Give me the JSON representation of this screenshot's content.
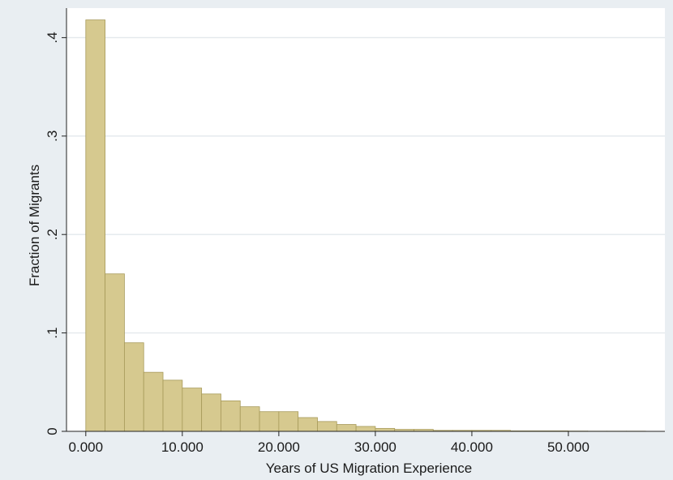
{
  "colors": {
    "background": "#e9eef2",
    "plot_area": "#ffffff",
    "bar_fill": "#d6c98f",
    "bar_stroke": "#a79a5a",
    "gridline": "#e3e8ec",
    "axis": "#222222"
  },
  "chart_data": {
    "type": "bar",
    "style": "histogram",
    "title": "",
    "xlabel": "Years of US Migration Experience",
    "ylabel": "Fraction of Migrants",
    "xlim": [
      -2,
      60
    ],
    "ylim": [
      0,
      0.43
    ],
    "grid": true,
    "legend": "none",
    "x_ticks": [
      {
        "value": 0,
        "label": "0.000"
      },
      {
        "value": 10,
        "label": "10.000"
      },
      {
        "value": 20,
        "label": "20.000"
      },
      {
        "value": 30,
        "label": "30.000"
      },
      {
        "value": 40,
        "label": "40.000"
      },
      {
        "value": 50,
        "label": "50.000"
      }
    ],
    "y_ticks": [
      {
        "value": 0,
        "label": "0"
      },
      {
        "value": 0.1,
        "label": ".1"
      },
      {
        "value": 0.2,
        "label": ".2"
      },
      {
        "value": 0.3,
        "label": ".3"
      },
      {
        "value": 0.4,
        "label": ".4"
      }
    ],
    "bin_width": 2,
    "bins": [
      {
        "start": 0,
        "value": 0.418
      },
      {
        "start": 2,
        "value": 0.16
      },
      {
        "start": 4,
        "value": 0.09
      },
      {
        "start": 6,
        "value": 0.06
      },
      {
        "start": 8,
        "value": 0.052
      },
      {
        "start": 10,
        "value": 0.044
      },
      {
        "start": 12,
        "value": 0.038
      },
      {
        "start": 14,
        "value": 0.031
      },
      {
        "start": 16,
        "value": 0.025
      },
      {
        "start": 18,
        "value": 0.02
      },
      {
        "start": 20,
        "value": 0.02
      },
      {
        "start": 22,
        "value": 0.014
      },
      {
        "start": 24,
        "value": 0.01
      },
      {
        "start": 26,
        "value": 0.007
      },
      {
        "start": 28,
        "value": 0.005
      },
      {
        "start": 30,
        "value": 0.003
      },
      {
        "start": 32,
        "value": 0.002
      },
      {
        "start": 34,
        "value": 0.002
      },
      {
        "start": 36,
        "value": 0.001
      },
      {
        "start": 38,
        "value": 0.001
      },
      {
        "start": 40,
        "value": 0.001
      },
      {
        "start": 42,
        "value": 0.001
      },
      {
        "start": 44,
        "value": 0.0005
      },
      {
        "start": 46,
        "value": 0.0005
      },
      {
        "start": 48,
        "value": 0.0005
      },
      {
        "start": 50,
        "value": 0.0003
      },
      {
        "start": 52,
        "value": 0.0002
      },
      {
        "start": 54,
        "value": 0.0002
      },
      {
        "start": 56,
        "value": 0.0002
      }
    ]
  }
}
